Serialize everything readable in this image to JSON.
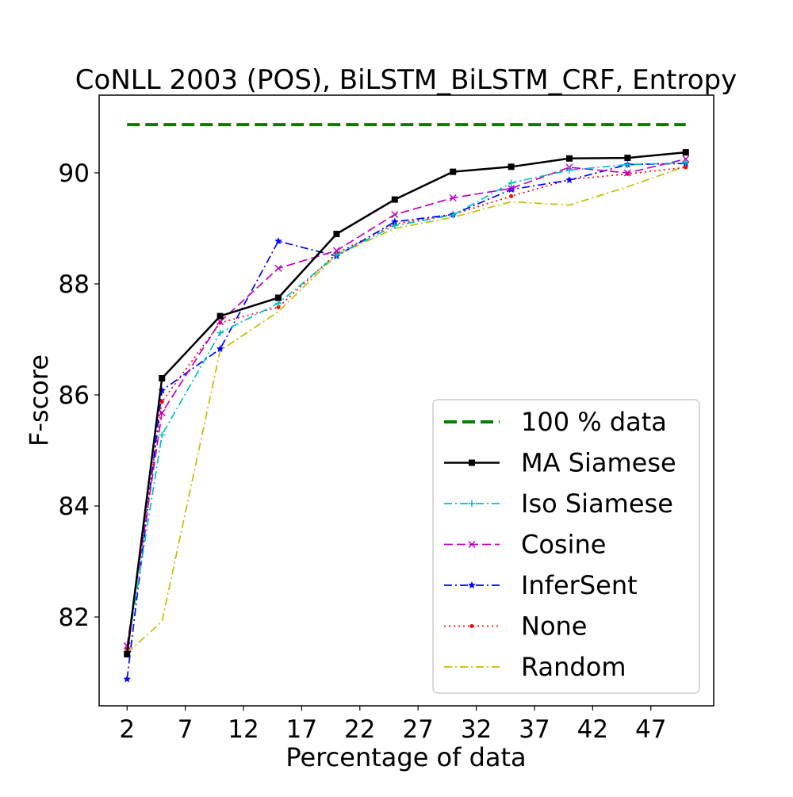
{
  "chart_data": {
    "type": "line",
    "title": "CoNLL 2003 (POS), BiLSTM_BiLSTM_CRF, Entropy",
    "xlabel": "Percentage of data",
    "ylabel": "F-score",
    "xlim": [
      -0.4,
      52.4
    ],
    "ylim": [
      80.4,
      91.4
    ],
    "xticks": [
      2,
      7,
      12,
      17,
      22,
      27,
      32,
      37,
      42,
      47
    ],
    "yticks": [
      82,
      84,
      86,
      88,
      90
    ],
    "grid": false,
    "legend_position": "lower-right",
    "reference_lines": [
      {
        "name": "100 % data",
        "value": 90.87,
        "x_range": [
          2,
          50
        ],
        "color": "#008000",
        "dash": "dashed"
      }
    ],
    "x": [
      2,
      5,
      10,
      15,
      20,
      25,
      30,
      35,
      40,
      45,
      50
    ],
    "series": [
      {
        "name": "MA Siamese",
        "color": "#000000",
        "dash": "solid",
        "marker": "square",
        "values": [
          81.33,
          86.3,
          87.42,
          87.75,
          88.9,
          89.52,
          90.02,
          90.11,
          90.26,
          90.27,
          90.37
        ]
      },
      {
        "name": "Iso Siamese",
        "color": "#00bfbf",
        "dash": "dashdot",
        "marker": "plus",
        "values": [
          81.38,
          85.28,
          87.12,
          87.65,
          88.52,
          89.05,
          89.24,
          89.82,
          90.05,
          90.15,
          90.18
        ]
      },
      {
        "name": "Cosine",
        "color": "#bf00bf",
        "dash": "dashed",
        "marker": "x",
        "values": [
          81.48,
          85.68,
          87.32,
          88.28,
          88.6,
          89.25,
          89.55,
          89.72,
          90.1,
          90.0,
          90.25
        ]
      },
      {
        "name": "InferSent",
        "color": "#0000ff",
        "dash": "dashdot",
        "marker": "star",
        "values": [
          80.88,
          86.08,
          86.83,
          88.77,
          88.5,
          89.12,
          89.25,
          89.7,
          89.87,
          90.15,
          90.17
        ]
      },
      {
        "name": "None",
        "color": "#ff0000",
        "dash": "dotted",
        "marker": "dot",
        "values": [
          81.42,
          85.88,
          87.3,
          87.58,
          88.55,
          89.08,
          89.25,
          89.58,
          89.88,
          89.98,
          90.1
        ]
      },
      {
        "name": "Random",
        "color": "#bfbf00",
        "dash": "dashdot",
        "marker": "none",
        "values": [
          81.35,
          81.92,
          86.8,
          87.5,
          88.52,
          89.0,
          89.2,
          89.48,
          89.42,
          89.75,
          90.12
        ]
      }
    ]
  }
}
